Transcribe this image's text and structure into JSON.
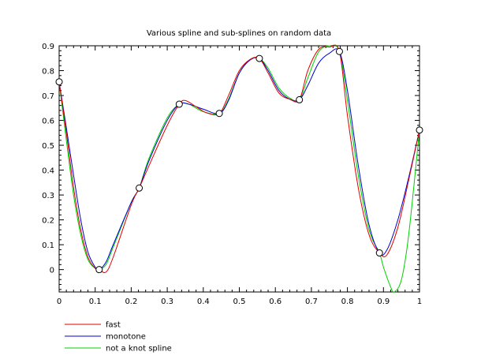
{
  "chart_data": {
    "type": "line",
    "title": "Various spline and sub-splines on random data",
    "xlabel": "",
    "ylabel": "",
    "xlim": [
      0,
      1
    ],
    "ylim": [
      -0.09,
      0.9
    ],
    "xticks": [
      "0",
      "0.1",
      "0.2",
      "0.3",
      "0.4",
      "0.5",
      "0.6",
      "0.7",
      "0.8",
      "0.9",
      "1"
    ],
    "yticks": [
      "0",
      "0.1",
      "0.2",
      "0.3",
      "0.4",
      "0.5",
      "0.6",
      "0.7",
      "0.8",
      "0.9"
    ],
    "grid": false,
    "legend_position": "bottom-left",
    "data_points": {
      "x": [
        0.0,
        0.1111,
        0.2222,
        0.3333,
        0.4444,
        0.5556,
        0.6667,
        0.7778,
        0.8889,
        1.0
      ],
      "y": [
        0.755,
        0.0,
        0.328,
        0.665,
        0.628,
        0.849,
        0.683,
        0.877,
        0.067,
        0.561
      ]
    },
    "series": [
      {
        "name": "fast",
        "color": "#e00000",
        "x": [
          0.0,
          0.02,
          0.04,
          0.06,
          0.08,
          0.1,
          0.111,
          0.13,
          0.15,
          0.2,
          0.2222,
          0.25,
          0.3,
          0.3333,
          0.35,
          0.38,
          0.41,
          0.4444,
          0.47,
          0.5,
          0.53,
          0.5556,
          0.58,
          0.61,
          0.64,
          0.6667,
          0.69,
          0.72,
          0.75,
          0.7778,
          0.8,
          0.83,
          0.86,
          0.8889,
          0.91,
          0.94,
          0.97,
          1.0
        ],
        "y": [
          0.755,
          0.55,
          0.33,
          0.16,
          0.05,
          0.005,
          0.0,
          -0.01,
          0.05,
          0.26,
          0.328,
          0.42,
          0.58,
          0.665,
          0.68,
          0.655,
          0.63,
          0.628,
          0.7,
          0.8,
          0.845,
          0.849,
          0.79,
          0.71,
          0.685,
          0.683,
          0.8,
          0.885,
          0.895,
          0.877,
          0.62,
          0.33,
          0.14,
          0.067,
          0.06,
          0.17,
          0.36,
          0.561
        ]
      },
      {
        "name": "monotone",
        "color": "#0000d0",
        "x": [
          0.0,
          0.02,
          0.04,
          0.06,
          0.08,
          0.1,
          0.1111,
          0.13,
          0.15,
          0.2,
          0.2222,
          0.25,
          0.3,
          0.3333,
          0.36,
          0.4,
          0.4444,
          0.47,
          0.5,
          0.53,
          0.5556,
          0.58,
          0.61,
          0.64,
          0.6667,
          0.69,
          0.72,
          0.75,
          0.7778,
          0.8,
          0.83,
          0.86,
          0.8889,
          0.91,
          0.94,
          0.97,
          1.0
        ],
        "y": [
          0.755,
          0.57,
          0.38,
          0.2,
          0.07,
          0.01,
          0.0,
          0.03,
          0.1,
          0.27,
          0.328,
          0.44,
          0.6,
          0.665,
          0.665,
          0.645,
          0.628,
          0.68,
          0.79,
          0.843,
          0.849,
          0.8,
          0.72,
          0.685,
          0.683,
          0.74,
          0.83,
          0.87,
          0.877,
          0.72,
          0.42,
          0.18,
          0.067,
          0.08,
          0.2,
          0.37,
          0.561
        ]
      },
      {
        "name": "not a knot spline",
        "color": "#00d000",
        "x": [
          0.0,
          0.02,
          0.04,
          0.06,
          0.08,
          0.1,
          0.1111,
          0.13,
          0.15,
          0.2,
          0.2222,
          0.25,
          0.3,
          0.3333,
          0.36,
          0.4,
          0.4444,
          0.47,
          0.5,
          0.53,
          0.5556,
          0.58,
          0.61,
          0.64,
          0.6667,
          0.69,
          0.72,
          0.75,
          0.7778,
          0.8,
          0.83,
          0.86,
          0.8889,
          0.9,
          0.92,
          0.93,
          0.95,
          0.97,
          1.0
        ],
        "y": [
          0.755,
          0.52,
          0.3,
          0.14,
          0.04,
          0.005,
          0.0,
          0.02,
          0.09,
          0.27,
          0.328,
          0.45,
          0.61,
          0.665,
          0.665,
          0.635,
          0.628,
          0.685,
          0.79,
          0.845,
          0.849,
          0.81,
          0.73,
          0.69,
          0.683,
          0.77,
          0.875,
          0.9,
          0.877,
          0.68,
          0.38,
          0.16,
          0.067,
          0.01,
          -0.07,
          -0.09,
          -0.04,
          0.14,
          0.561
        ]
      }
    ]
  }
}
